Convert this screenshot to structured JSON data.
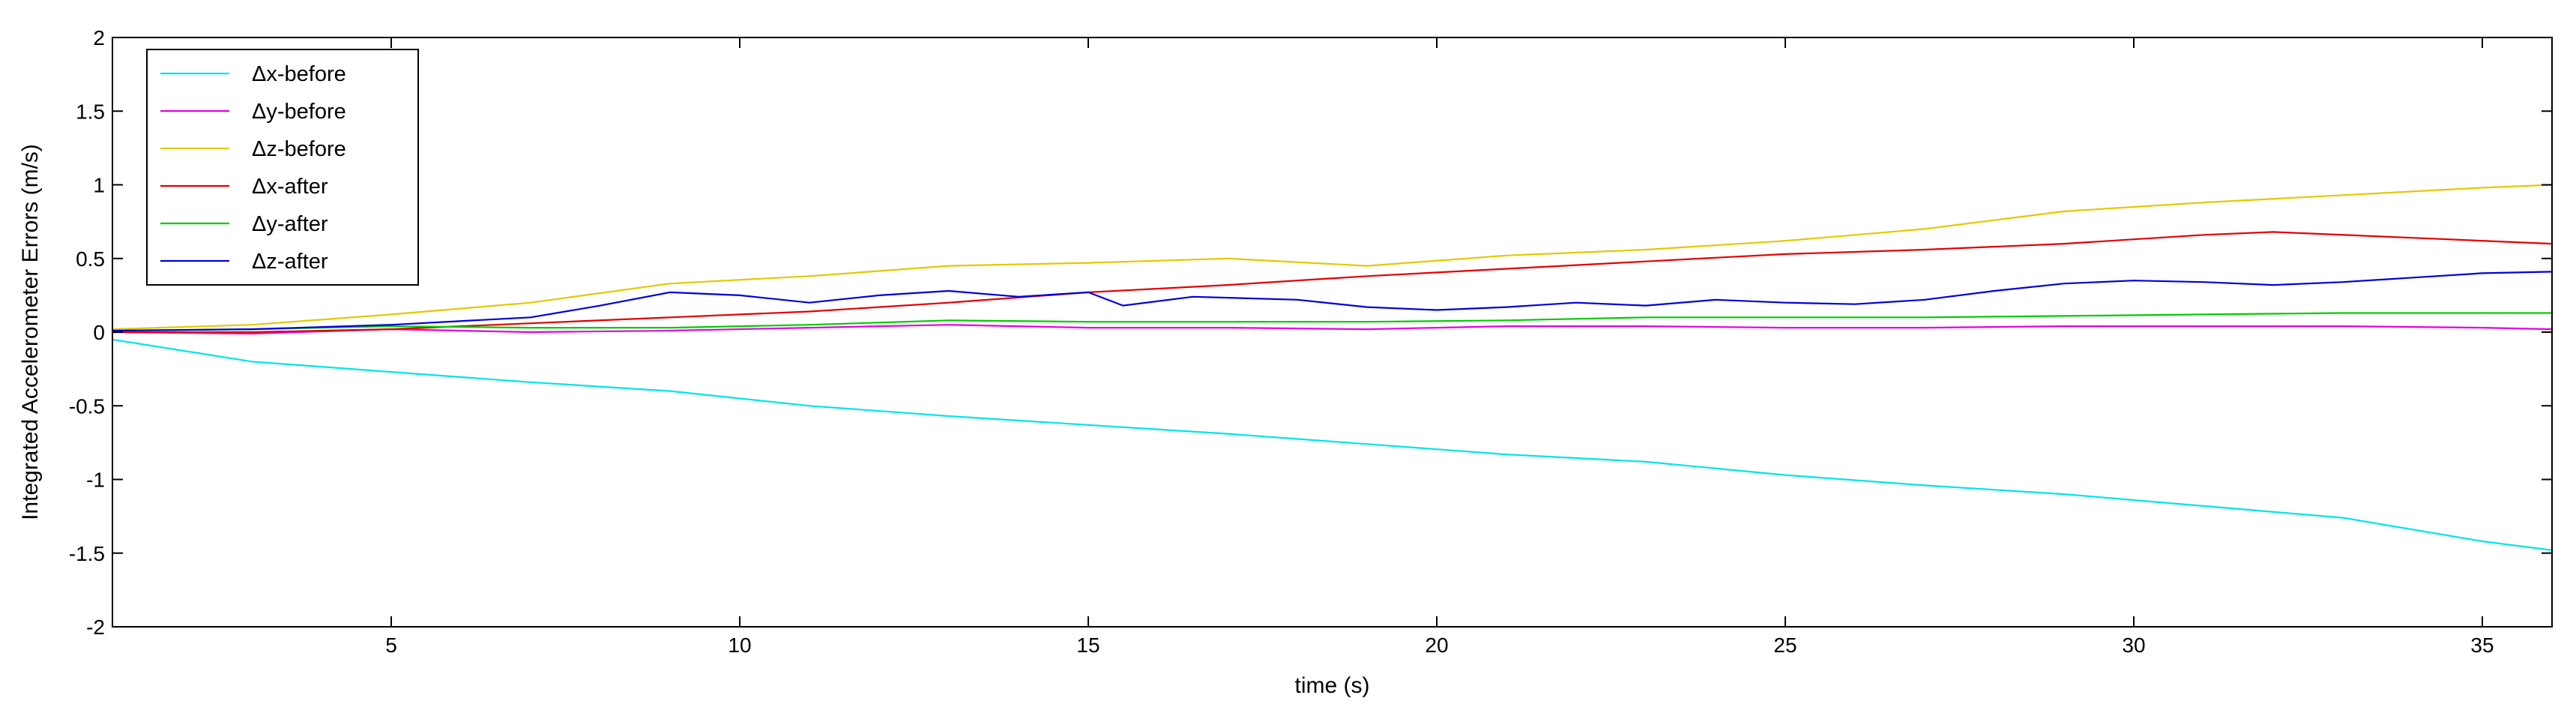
{
  "chart_data": {
    "type": "line",
    "title": "",
    "xlabel": "time (s)",
    "ylabel": "Integrated Accelerometer Errors (m/s)",
    "xlim": [
      1,
      36
    ],
    "ylim": [
      -2,
      2
    ],
    "xticks": [
      5,
      10,
      15,
      20,
      25,
      30,
      35
    ],
    "yticks": [
      -2,
      -1.5,
      -1,
      -0.5,
      0,
      0.5,
      1,
      1.5,
      2
    ],
    "xtick_labels": [
      "5",
      "10",
      "15",
      "20",
      "25",
      "30",
      "35"
    ],
    "ytick_labels": [
      "-2",
      "-1.5",
      "-1",
      "-0.5",
      "0",
      "0.5",
      "1",
      "1.5",
      "2"
    ],
    "grid": false,
    "legend_position": "top-left",
    "series": [
      {
        "name": "Δx-before",
        "color": "#00e5e5",
        "x": [
          1,
          3,
          5,
          7,
          9,
          11,
          13,
          15,
          17,
          19,
          21,
          23,
          25,
          27,
          29,
          31,
          33,
          35,
          36
        ],
        "y": [
          -0.05,
          -0.2,
          -0.27,
          -0.34,
          -0.4,
          -0.5,
          -0.57,
          -0.63,
          -0.69,
          -0.76,
          -0.83,
          -0.88,
          -0.97,
          -1.04,
          -1.1,
          -1.18,
          -1.26,
          -1.42,
          -1.48
        ]
      },
      {
        "name": "Δy-before",
        "color": "#e500e5",
        "x": [
          1,
          3,
          5,
          7,
          9,
          11,
          13,
          15,
          17,
          19,
          21,
          23,
          25,
          27,
          29,
          31,
          33,
          35,
          36
        ],
        "y": [
          0.0,
          -0.01,
          0.02,
          0.0,
          0.01,
          0.03,
          0.05,
          0.03,
          0.03,
          0.02,
          0.04,
          0.04,
          0.03,
          0.03,
          0.04,
          0.04,
          0.04,
          0.03,
          0.02
        ]
      },
      {
        "name": "Δz-before",
        "color": "#e5c800",
        "x": [
          1,
          3,
          5,
          7,
          9,
          11,
          13,
          15,
          17,
          19,
          21,
          23,
          25,
          27,
          29,
          31,
          33,
          35,
          36
        ],
        "y": [
          0.02,
          0.05,
          0.12,
          0.2,
          0.33,
          0.38,
          0.45,
          0.47,
          0.5,
          0.45,
          0.52,
          0.56,
          0.62,
          0.7,
          0.82,
          0.88,
          0.93,
          0.98,
          1.0
        ]
      },
      {
        "name": "Δx-after",
        "color": "#e50000",
        "x": [
          1,
          3,
          5,
          7,
          9,
          11,
          13,
          15,
          17,
          19,
          21,
          23,
          25,
          27,
          29,
          31,
          32,
          34,
          36
        ],
        "y": [
          0.0,
          0.0,
          0.02,
          0.06,
          0.1,
          0.14,
          0.2,
          0.27,
          0.32,
          0.38,
          0.43,
          0.48,
          0.53,
          0.56,
          0.6,
          0.66,
          0.68,
          0.64,
          0.6
        ]
      },
      {
        "name": "Δy-after",
        "color": "#00cc00",
        "x": [
          1,
          3,
          5,
          7,
          9,
          11,
          13,
          15,
          17,
          19,
          21,
          23,
          25,
          27,
          29,
          31,
          33,
          35,
          36
        ],
        "y": [
          0.01,
          0.02,
          0.04,
          0.03,
          0.03,
          0.05,
          0.08,
          0.07,
          0.07,
          0.07,
          0.08,
          0.1,
          0.1,
          0.1,
          0.11,
          0.12,
          0.13,
          0.13,
          0.13
        ]
      },
      {
        "name": "Δz-after",
        "color": "#0000dd",
        "x": [
          1,
          3,
          5,
          7,
          8,
          9,
          10,
          11,
          12,
          13,
          14,
          15,
          15.5,
          16.5,
          18,
          19,
          20,
          21,
          22,
          23,
          24,
          25,
          26,
          27,
          28,
          29,
          30,
          31,
          32,
          33,
          34,
          35,
          36
        ],
        "y": [
          0.01,
          0.02,
          0.05,
          0.1,
          0.18,
          0.27,
          0.25,
          0.2,
          0.25,
          0.28,
          0.24,
          0.27,
          0.18,
          0.24,
          0.22,
          0.17,
          0.15,
          0.17,
          0.2,
          0.18,
          0.22,
          0.2,
          0.19,
          0.22,
          0.28,
          0.33,
          0.35,
          0.34,
          0.32,
          0.34,
          0.37,
          0.4,
          0.41
        ]
      }
    ]
  }
}
